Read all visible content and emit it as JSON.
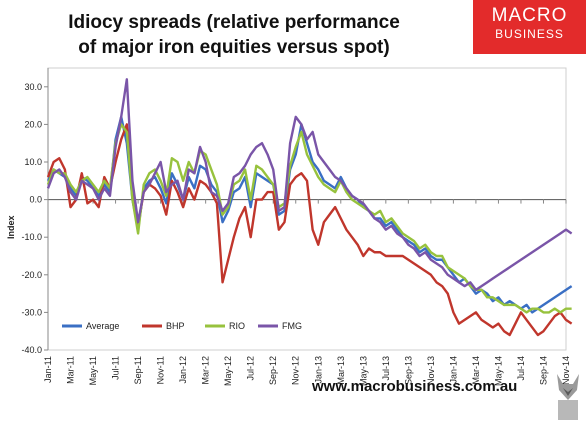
{
  "header": {
    "title_line1": "Idiocy spreads (relative performance",
    "title_line2": "of major iron equities versus spot)"
  },
  "logo": {
    "line1": "MACRO",
    "line2": "BUSINESS",
    "color": "#e32b2b"
  },
  "footer": {
    "url": "www.macrobusiness.com.au",
    "mascot_icon": "fox-icon"
  },
  "chart_data": {
    "type": "line",
    "ylabel": "Index",
    "ylim": [
      -40,
      35
    ],
    "yticks": [
      30,
      20,
      10,
      0,
      -10,
      -20,
      -30,
      -40
    ],
    "ytick_labels": [
      "30.0",
      "20.0",
      "10.0",
      "0.0",
      "-10.0",
      "-20.0",
      "-30.0",
      "-40.0"
    ],
    "grid": false,
    "xlim": [
      "2011-01",
      "2014-11"
    ],
    "xticks": [
      "Jan-11",
      "Mar-11",
      "May-11",
      "Jul-11",
      "Sep-11",
      "Nov-11",
      "Jan-12",
      "Mar-12",
      "May-12",
      "Jul-12",
      "Sep-12",
      "Nov-12",
      "Jan-13",
      "Mar-13",
      "May-13",
      "Jul-13",
      "Sep-13",
      "Nov-13",
      "Jan-14",
      "Mar-14",
      "May-14",
      "Jul-14",
      "Sep-14",
      "Nov-14"
    ],
    "legend_placement": "bottom-left",
    "x": [
      0,
      0.5,
      1,
      1.5,
      2,
      2.5,
      3,
      3.5,
      4,
      4.5,
      5,
      5.5,
      6,
      6.5,
      7,
      7.5,
      8,
      8.5,
      9,
      9.5,
      10,
      10.5,
      11,
      11.5,
      12,
      12.5,
      13,
      13.5,
      14,
      14.5,
      15,
      15.5,
      16,
      16.5,
      17,
      17.5,
      18,
      18.5,
      19,
      19.5,
      20,
      20.5,
      21,
      21.5,
      22,
      22.5,
      23,
      23.5,
      24,
      24.5,
      25,
      25.5,
      26,
      26.5,
      27,
      27.5,
      28,
      28.5,
      29,
      29.5,
      30,
      30.5,
      31,
      31.5,
      32,
      32.5,
      33,
      33.5,
      34,
      34.5,
      35,
      35.5,
      36,
      36.5,
      37,
      37.5,
      38,
      38.5,
      39,
      39.5,
      40,
      40.5,
      41,
      41.5,
      42,
      42.5,
      43,
      43.5,
      44,
      44.5,
      45,
      45.5,
      46,
      46.5
    ],
    "series": [
      {
        "name": "Average",
        "color": "#3a6fc4",
        "values": [
          5,
          8,
          7,
          6,
          3,
          1,
          6,
          5,
          3,
          1,
          4,
          2,
          16,
          22,
          15,
          0,
          -8,
          3,
          5,
          6,
          3,
          -1,
          7,
          4,
          0,
          6,
          3,
          9,
          8,
          4,
          2,
          -6,
          -3,
          2,
          3,
          6,
          -2,
          7,
          6,
          5,
          4,
          -4,
          -3,
          8,
          12,
          20,
          15,
          10,
          8,
          5,
          4,
          3,
          6,
          3,
          1,
          0,
          -2,
          -3,
          -5,
          -5,
          -7,
          -6,
          -8,
          -10,
          -11,
          -12,
          -14,
          -13,
          -15,
          -16,
          -16,
          -18,
          -20,
          -22,
          -21,
          -23,
          -25,
          -24,
          -25,
          -27,
          -26,
          -28,
          -27,
          -28,
          -29,
          -28,
          -30,
          -29,
          -28,
          -27,
          -26,
          -25,
          -24,
          -23
        ]
      },
      {
        "name": "BHP",
        "color": "#c0362c",
        "values": [
          6,
          10,
          11,
          8,
          -2,
          0,
          7,
          -1,
          0,
          -2,
          6,
          3,
          10,
          16,
          20,
          2,
          -7,
          2,
          4,
          3,
          1,
          -4,
          5,
          2,
          -2,
          3,
          0,
          5,
          4,
          2,
          -1,
          -22,
          -16,
          -10,
          -5,
          -2,
          -10,
          0,
          0,
          2,
          2,
          -8,
          -6,
          4,
          6,
          7,
          5,
          -8,
          -12,
          -6,
          -4,
          -2,
          -5,
          -8,
          -10,
          -12,
          -15,
          -13,
          -14,
          -14,
          -15,
          -15,
          -15,
          -15,
          -16,
          -17,
          -18,
          -19,
          -20,
          -22,
          -23,
          -25,
          -30,
          -33,
          -32,
          -31,
          -30,
          -32,
          -33,
          -34,
          -33,
          -35,
          -36,
          -33,
          -30,
          -32,
          -34,
          -36,
          -35,
          -33,
          -31,
          -30,
          -32,
          -33
        ]
      },
      {
        "name": "RIO",
        "color": "#97c23d",
        "values": [
          4,
          8,
          7,
          7,
          4,
          2,
          5,
          6,
          4,
          2,
          5,
          3,
          15,
          20,
          18,
          0,
          -9,
          4,
          7,
          8,
          5,
          1,
          11,
          10,
          5,
          10,
          7,
          13,
          12,
          8,
          4,
          -4,
          -2,
          4,
          5,
          8,
          0,
          9,
          8,
          6,
          4,
          -2,
          -1,
          9,
          14,
          18,
          12,
          9,
          6,
          4,
          3,
          2,
          5,
          2,
          0,
          -1,
          -2,
          -3,
          -4,
          -3,
          -6,
          -5,
          -7,
          -9,
          -10,
          -11,
          -13,
          -12,
          -14,
          -15,
          -15,
          -18,
          -19,
          -20,
          -21,
          -23,
          -24,
          -24,
          -26,
          -26,
          -27,
          -28,
          -28,
          -28,
          -29,
          -30,
          -29,
          -29,
          -30,
          -30,
          -29,
          -30,
          -29,
          -29
        ]
      },
      {
        "name": "FMG",
        "color": "#7a55a8",
        "values": [
          3,
          7,
          8,
          6,
          2,
          0,
          5,
          4,
          3,
          0,
          3,
          1,
          14,
          22,
          32,
          5,
          -6,
          2,
          4,
          7,
          10,
          2,
          4,
          5,
          0,
          8,
          7,
          14,
          10,
          2,
          1,
          -3,
          -1,
          6,
          7,
          9,
          12,
          14,
          15,
          12,
          8,
          -3,
          -2,
          15,
          22,
          20,
          16,
          18,
          12,
          10,
          8,
          6,
          5,
          3,
          1,
          0,
          -1,
          -3,
          -5,
          -6,
          -8,
          -7,
          -9,
          -10,
          -12,
          -13,
          -15,
          -14,
          -16,
          -17,
          -18,
          -20,
          -21,
          -22,
          -23,
          -22,
          -24,
          -23,
          -22,
          -21,
          -20,
          -19,
          -18,
          -17,
          -16,
          -15,
          -14,
          -13,
          -12,
          -11,
          -10,
          -9,
          -8,
          -9
        ]
      }
    ]
  }
}
